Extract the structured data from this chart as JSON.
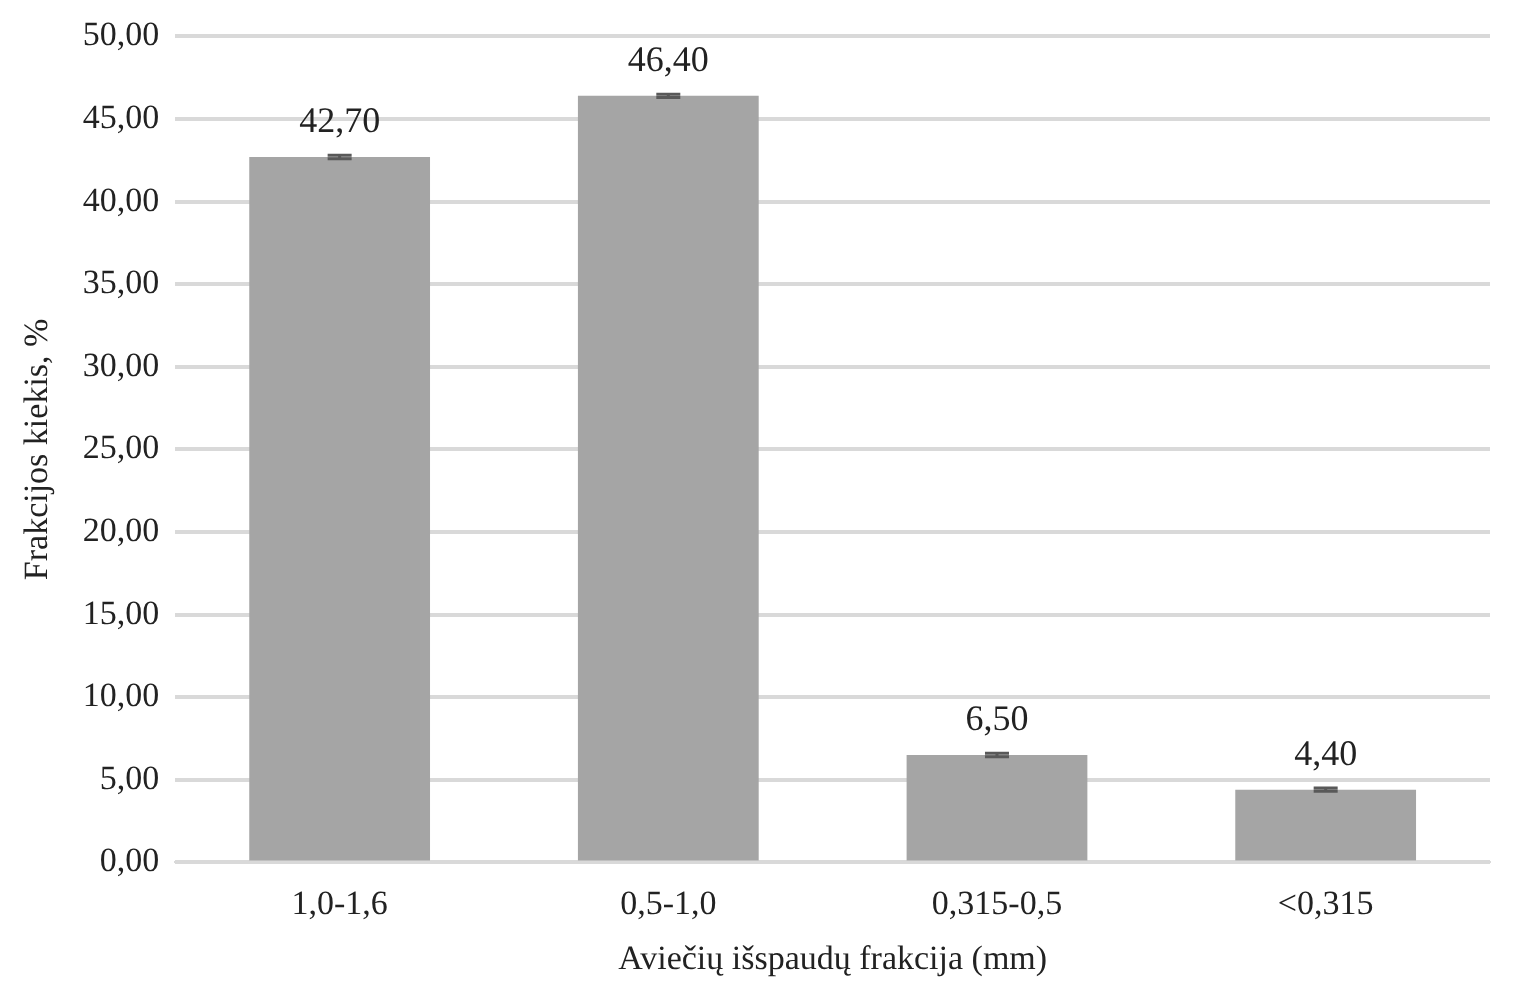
{
  "chart_data": {
    "type": "bar",
    "xlabel": "Aviečių išspaudų frakcija (mm)",
    "ylabel": "Frakcijos kiekis, %",
    "categories": [
      "1,0-1,6",
      "0,5-1,0",
      "0,315-0,5",
      "<0,315"
    ],
    "values": [
      42.7,
      46.4,
      6.5,
      4.4
    ],
    "color": "#a5a5a5",
    "errors": [
      0.1,
      0.1,
      0.1,
      0.1
    ],
    "value_labels": [
      "42,70",
      "46,40",
      "6,50",
      "4,40"
    ],
    "ylim": [
      0,
      50
    ],
    "yticks": [
      {
        "value": 0,
        "label": "0,00"
      },
      {
        "value": 5,
        "label": "5,00"
      },
      {
        "value": 10,
        "label": "10,00"
      },
      {
        "value": 15,
        "label": "15,00"
      },
      {
        "value": 20,
        "label": "20,00"
      },
      {
        "value": 25,
        "label": "25,00"
      },
      {
        "value": 30,
        "label": "30,00"
      },
      {
        "value": 35,
        "label": "35,00"
      },
      {
        "value": 40,
        "label": "40,00"
      },
      {
        "value": 45,
        "label": "45,00"
      },
      {
        "value": 50,
        "label": "50,00"
      }
    ],
    "grid": "y",
    "legend": false
  }
}
